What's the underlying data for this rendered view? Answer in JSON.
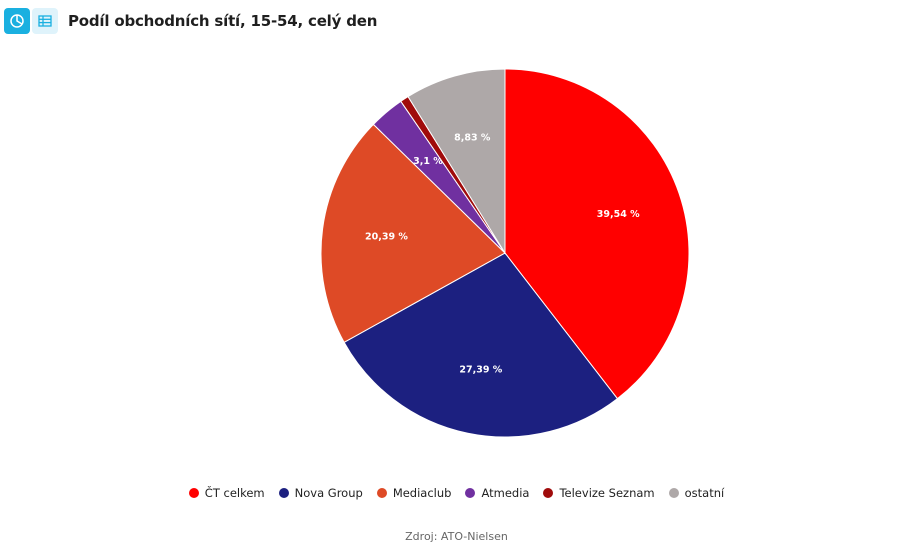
{
  "title": "Podíl obchodních sítí, 15-54, celý den",
  "toolbar": {
    "chart_view_icon": "pie-chart-icon",
    "table_view_icon": "table-icon"
  },
  "source": "Zdroj: ATO-Nielsen",
  "chart_data": {
    "type": "pie",
    "title": "Podíl obchodních sítí, 15-54, celý den",
    "start_angle_deg": 0,
    "direction": "clockwise",
    "legend_position": "bottom",
    "slices": [
      {
        "name": "ČT celkem",
        "value": 39.54,
        "label": "39,54 %",
        "color": "#ff0000"
      },
      {
        "name": "Nova Group",
        "value": 27.39,
        "label": "27,39 %",
        "color": "#1c2080"
      },
      {
        "name": "Mediaclub",
        "value": 20.39,
        "label": "20,39 %",
        "color": "#de4a26"
      },
      {
        "name": "Atmedia",
        "value": 3.1,
        "label": "3,1 %",
        "color": "#7030a0"
      },
      {
        "name": "Televize Seznam",
        "value": 0.75,
        "label": "",
        "color": "#a00b0b"
      },
      {
        "name": "ostatní",
        "value": 8.83,
        "label": "8,83 %",
        "color": "#aea8a8"
      }
    ]
  }
}
